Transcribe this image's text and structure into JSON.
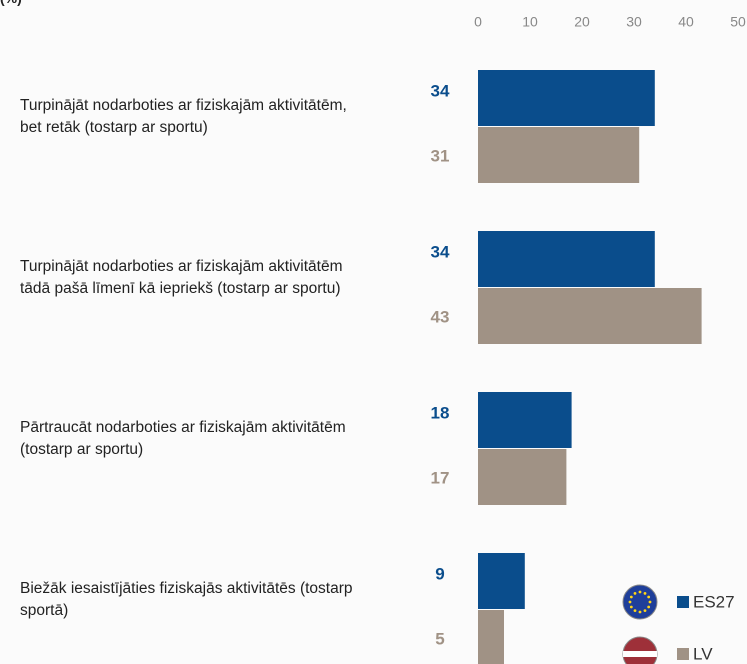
{
  "chart_data": {
    "type": "hbar",
    "subtitle": "(%)",
    "categories": [
      "Turpinājāt nodarboties ar fiziskajām aktivitātēm, bet retāk (tostarp ar sportu)",
      "Turpinājāt nodarboties ar fiziskajām aktivitātēm tādā pašā līmenī kā iepriekš (tostarp ar sportu)",
      "Pārtraucāt nodarboties ar fiziskajām aktivitātēm (tostarp ar sportu)",
      "Biežāk iesaistījāties fiziskajās aktivitātēs (tostarp sportā)"
    ],
    "series": [
      {
        "name": "ES27",
        "color": "#0a4d8c",
        "values": [
          34,
          34,
          18,
          9
        ]
      },
      {
        "name": "LV",
        "color": "#a09285",
        "values": [
          31,
          43,
          17,
          5
        ]
      }
    ],
    "xlim": [
      0,
      50
    ],
    "xticks": [
      0,
      10,
      20,
      30,
      40,
      50
    ],
    "legend": "bottom-right"
  }
}
